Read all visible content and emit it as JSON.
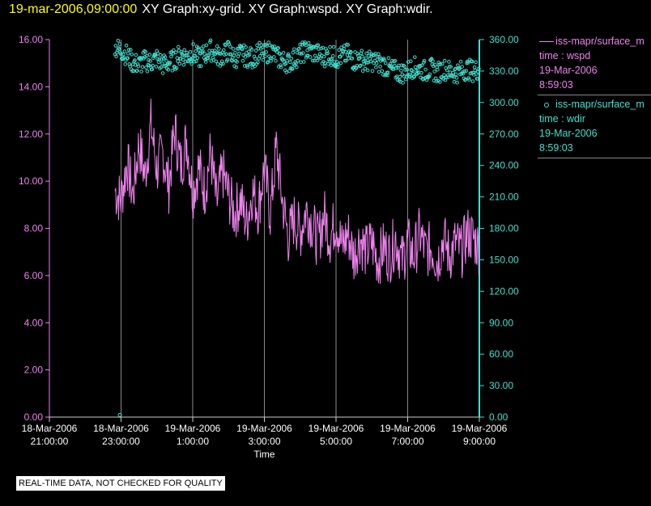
{
  "header": {
    "timestamp": "19-mar-2006,09:00:00",
    "graphs": "XY Graph:xy-grid.  XY Graph:wspd.  XY Graph:wdir."
  },
  "legend": [
    {
      "head": "iss-mapr/surface_m",
      "line1": "time : wspd",
      "line2": "19-Mar-2006",
      "line3": "8:59:03",
      "color": "#ee82ee",
      "symbol": "line"
    },
    {
      "head": "iss-mapr/surface_m",
      "line1": "time : wdir",
      "line2": "19-Mar-2006",
      "line3": "8:59:03",
      "color": "#40e0d0",
      "symbol": "circle"
    }
  ],
  "quality_note": "REAL-TIME DATA, NOT CHECKED FOR QUALITY",
  "chart_data": {
    "type": "line",
    "xlabel": "Time",
    "x_ticks": [
      {
        "hour": 21,
        "date": "18-Mar-2006",
        "time": "21:00:00"
      },
      {
        "hour": 23,
        "date": "18-Mar-2006",
        "time": "23:00:00"
      },
      {
        "hour": 25,
        "date": "19-Mar-2006",
        "time": "1:00:00"
      },
      {
        "hour": 27,
        "date": "19-Mar-2006",
        "time": "3:00:00"
      },
      {
        "hour": 29,
        "date": "19-Mar-2006",
        "time": "5:00:00"
      },
      {
        "hour": 31,
        "date": "19-Mar-2006",
        "time": "7:00:00"
      },
      {
        "hour": 33,
        "date": "19-Mar-2006",
        "time": "9:00:00"
      }
    ],
    "xlim": [
      "18-Mar-2006 21:00:00",
      "19-Mar-2006 9:00:00"
    ],
    "grid": "vertical",
    "legend_position": "right",
    "y_left": {
      "ylim": [
        0,
        16
      ],
      "ticks": [
        "0.00",
        "2.00",
        "4.00",
        "6.00",
        "8.00",
        "10.00",
        "12.00",
        "14.00",
        "16.00"
      ],
      "color": "#ee82ee"
    },
    "y_right": {
      "ylim": [
        0,
        360
      ],
      "ticks": [
        "0.00",
        "30.00",
        "60.00",
        "90.00",
        "120.00",
        "150.00",
        "180.00",
        "210.00",
        "240.00",
        "270.00",
        "300.00",
        "330.00",
        "360.00"
      ],
      "color": "#40e0d0"
    },
    "series": [
      {
        "name": "iss-mapr/surface_m time : wspd",
        "axis": "left",
        "style": "line",
        "color": "#ee82ee",
        "x": [
          "18-Mar-2006 22:50",
          "18-Mar-2006 23:00",
          "18-Mar-2006 23:10",
          "18-Mar-2006 23:20",
          "18-Mar-2006 23:30",
          "18-Mar-2006 23:40",
          "18-Mar-2006 23:50",
          "19-Mar-2006 0:00",
          "19-Mar-2006 0:10",
          "19-Mar-2006 0:20",
          "19-Mar-2006 0:30",
          "19-Mar-2006 0:40",
          "19-Mar-2006 0:50",
          "19-Mar-2006 1:00",
          "19-Mar-2006 1:10",
          "19-Mar-2006 1:20",
          "19-Mar-2006 1:30",
          "19-Mar-2006 1:40",
          "19-Mar-2006 1:50",
          "19-Mar-2006 2:00",
          "19-Mar-2006 2:10",
          "19-Mar-2006 2:20",
          "19-Mar-2006 2:30",
          "19-Mar-2006 2:40",
          "19-Mar-2006 2:50",
          "19-Mar-2006 3:00",
          "19-Mar-2006 3:10",
          "19-Mar-2006 3:20",
          "19-Mar-2006 3:30",
          "19-Mar-2006 3:40",
          "19-Mar-2006 3:50",
          "19-Mar-2006 4:00",
          "19-Mar-2006 4:10",
          "19-Mar-2006 4:20",
          "19-Mar-2006 4:30",
          "19-Mar-2006 4:40",
          "19-Mar-2006 4:50",
          "19-Mar-2006 5:00",
          "19-Mar-2006 5:10",
          "19-Mar-2006 5:20",
          "19-Mar-2006 5:30",
          "19-Mar-2006 5:40",
          "19-Mar-2006 5:50",
          "19-Mar-2006 6:00",
          "19-Mar-2006 6:10",
          "19-Mar-2006 6:20",
          "19-Mar-2006 6:30",
          "19-Mar-2006 6:40",
          "19-Mar-2006 6:50",
          "19-Mar-2006 7:00",
          "19-Mar-2006 7:10",
          "19-Mar-2006 7:20",
          "19-Mar-2006 7:30",
          "19-Mar-2006 7:40",
          "19-Mar-2006 7:50",
          "19-Mar-2006 8:00",
          "19-Mar-2006 8:10",
          "19-Mar-2006 8:20",
          "19-Mar-2006 8:30",
          "19-Mar-2006 8:40",
          "19-Mar-2006 8:50",
          "19-Mar-2006 8:59"
        ],
        "values": [
          9.6,
          9.2,
          10.8,
          9.4,
          11.6,
          10.2,
          12.4,
          10.5,
          11.2,
          9.8,
          12.2,
          10.6,
          11.8,
          9.5,
          10.6,
          9.6,
          11.2,
          9.0,
          10.4,
          9.4,
          8.6,
          9.2,
          8.2,
          9.6,
          8.8,
          10.6,
          8.6,
          11.4,
          9.2,
          7.6,
          8.4,
          7.8,
          8.8,
          8.2,
          7.4,
          8.6,
          7.6,
          8.4,
          7.2,
          7.8,
          6.8,
          7.6,
          7.0,
          7.4,
          6.6,
          7.2,
          6.8,
          7.6,
          6.6,
          7.4,
          6.8,
          7.8,
          7.0,
          7.2,
          6.6,
          7.6,
          6.8,
          7.4,
          7.0,
          7.8,
          7.6,
          7.2
        ],
        "spread": 1.2
      },
      {
        "name": "iss-mapr/surface_m time : wdir",
        "axis": "right",
        "style": "markers",
        "color": "#40e0d0",
        "x": [
          "18-Mar-2006 22:50",
          "18-Mar-2006 23:00",
          "18-Mar-2006 23:10",
          "18-Mar-2006 23:20",
          "18-Mar-2006 23:30",
          "18-Mar-2006 23:40",
          "18-Mar-2006 23:50",
          "19-Mar-2006 0:00",
          "19-Mar-2006 0:10",
          "19-Mar-2006 0:20",
          "19-Mar-2006 0:30",
          "19-Mar-2006 0:40",
          "19-Mar-2006 0:50",
          "19-Mar-2006 1:00",
          "19-Mar-2006 1:10",
          "19-Mar-2006 1:20",
          "19-Mar-2006 1:30",
          "19-Mar-2006 1:40",
          "19-Mar-2006 1:50",
          "19-Mar-2006 2:00",
          "19-Mar-2006 2:10",
          "19-Mar-2006 2:20",
          "19-Mar-2006 2:30",
          "19-Mar-2006 2:40",
          "19-Mar-2006 2:50",
          "19-Mar-2006 3:00",
          "19-Mar-2006 3:10",
          "19-Mar-2006 3:20",
          "19-Mar-2006 3:30",
          "19-Mar-2006 3:40",
          "19-Mar-2006 3:50",
          "19-Mar-2006 4:00",
          "19-Mar-2006 4:10",
          "19-Mar-2006 4:20",
          "19-Mar-2006 4:30",
          "19-Mar-2006 4:40",
          "19-Mar-2006 4:50",
          "19-Mar-2006 5:00",
          "19-Mar-2006 5:10",
          "19-Mar-2006 5:20",
          "19-Mar-2006 5:30",
          "19-Mar-2006 5:40",
          "19-Mar-2006 5:50",
          "19-Mar-2006 6:00",
          "19-Mar-2006 6:10",
          "19-Mar-2006 6:20",
          "19-Mar-2006 6:30",
          "19-Mar-2006 6:40",
          "19-Mar-2006 6:50",
          "19-Mar-2006 7:00",
          "19-Mar-2006 7:10",
          "19-Mar-2006 7:20",
          "19-Mar-2006 7:30",
          "19-Mar-2006 7:40",
          "19-Mar-2006 7:50",
          "19-Mar-2006 8:00",
          "19-Mar-2006 8:10",
          "19-Mar-2006 8:20",
          "19-Mar-2006 8:30",
          "19-Mar-2006 8:40",
          "19-Mar-2006 8:50",
          "19-Mar-2006 8:59"
        ],
        "values": [
          352,
          350,
          345,
          338,
          336,
          340,
          338,
          342,
          336,
          338,
          341,
          346,
          344,
          347,
          342,
          346,
          350,
          345,
          344,
          350,
          342,
          346,
          344,
          342,
          348,
          345,
          350,
          344,
          340,
          338,
          342,
          346,
          350,
          348,
          346,
          344,
          346,
          342,
          344,
          346,
          340,
          342,
          338,
          340,
          338,
          336,
          332,
          330,
          328,
          330,
          334,
          332,
          330,
          332,
          328,
          332,
          330,
          328,
          330,
          332,
          330,
          332
        ],
        "spread": 10,
        "outliers": [
          {
            "x": "18-Mar-2006 22:58",
            "y": 2
          }
        ]
      }
    ]
  }
}
